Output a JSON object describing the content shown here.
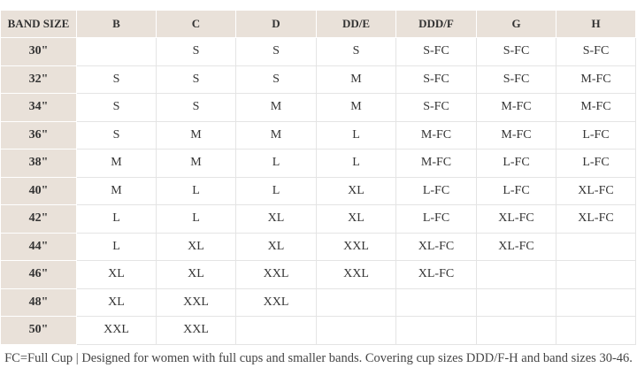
{
  "table": {
    "header": [
      "BAND SIZE",
      "B",
      "C",
      "D",
      "DD/E",
      "DDD/F",
      "G",
      "H"
    ],
    "rows": [
      [
        "30\"",
        null,
        "S",
        "S",
        "S",
        "S-FC",
        "S-FC",
        "S-FC"
      ],
      [
        "32\"",
        "S",
        "S",
        "S",
        "M",
        "S-FC",
        "S-FC",
        "M-FC"
      ],
      [
        "34\"",
        "S",
        "S",
        "M",
        "M",
        "S-FC",
        "M-FC",
        "M-FC"
      ],
      [
        "36\"",
        "S",
        "M",
        "M",
        "L",
        "M-FC",
        "M-FC",
        "L-FC"
      ],
      [
        "38\"",
        "M",
        "M",
        "L",
        "L",
        "M-FC",
        "L-FC",
        "L-FC"
      ],
      [
        "40\"",
        "M",
        "L",
        "L",
        "XL",
        "L-FC",
        "L-FC",
        "XL-FC"
      ],
      [
        "42\"",
        "L",
        "L",
        "XL",
        "XL",
        "L-FC",
        "XL-FC",
        "XL-FC"
      ],
      [
        "44\"",
        "L",
        "XL",
        "XL",
        "XXL",
        "XL-FC",
        "XL-FC",
        null
      ],
      [
        "46\"",
        "XL",
        "XL",
        "XXL",
        "XXL",
        "XL-FC",
        null,
        null
      ],
      [
        "48\"",
        "XL",
        "XXL",
        "XXL",
        null,
        null,
        null,
        null
      ],
      [
        "50\"",
        "XXL",
        "XXL",
        null,
        null,
        null,
        null,
        null
      ]
    ]
  },
  "footnote": "FC=Full Cup | Designed for women with full cups and smaller bands. Covering cup sizes DDD/F-H and band sizes 30-46."
}
